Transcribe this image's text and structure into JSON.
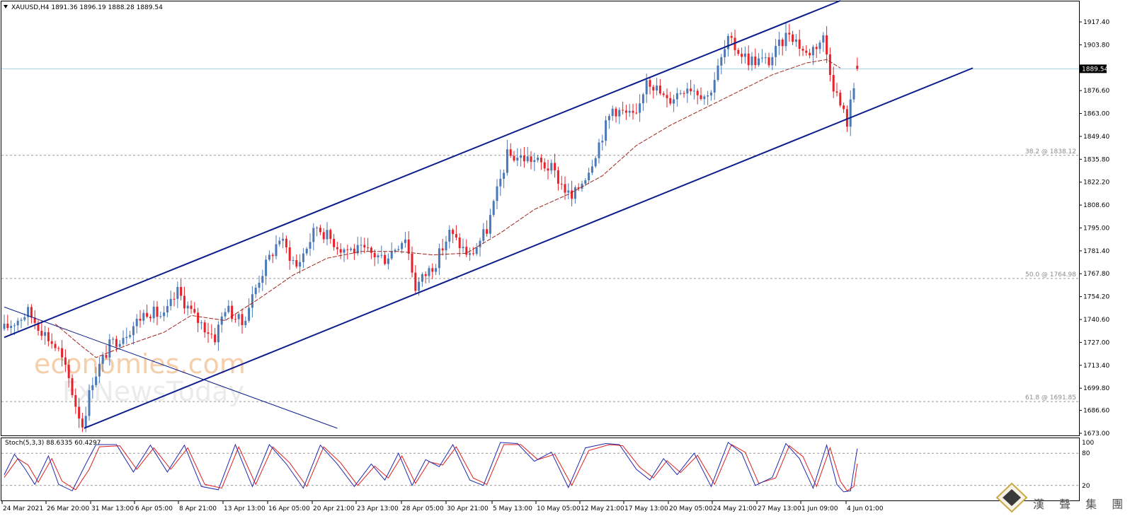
{
  "chart_data": {
    "type": "candlestick",
    "symbol": "XAUUSD",
    "timeframe": "H4",
    "header": "XAUUSD,H4  1891.36 1896.19 1888.28 1889.54",
    "ohlc_last": {
      "open": 1891.36,
      "high": 1896.19,
      "low": 1888.28,
      "close": 1889.54
    },
    "price_axis": {
      "ylim": [
        1673.0,
        1917.4
      ],
      "ticks": [
        "1917.40",
        "1903.80",
        "1889.54",
        "1876.60",
        "1863.00",
        "1849.40",
        "1835.80",
        "1822.20",
        "1808.60",
        "1795.00",
        "1781.40",
        "1767.80",
        "1754.20",
        "1740.60",
        "1727.00",
        "1713.40",
        "1699.80",
        "1686.60",
        "1673.00"
      ],
      "tick_values": [
        1917.4,
        1903.8,
        1889.54,
        1876.6,
        1863.0,
        1849.4,
        1835.8,
        1822.2,
        1808.6,
        1795.0,
        1781.4,
        1767.8,
        1754.2,
        1740.6,
        1727.0,
        1713.4,
        1699.8,
        1686.6,
        1673.0
      ],
      "current_price": "1889.54"
    },
    "time_axis": {
      "labels": [
        "24 Mar 2021",
        "26 Mar 20:00",
        "31 Mar 13:00",
        "6 Apr 05:00",
        "8 Apr 21:00",
        "13 Apr 13:00",
        "16 Apr 05:00",
        "20 Apr 21:00",
        "23 Apr 13:00",
        "28 Apr 05:00",
        "30 Apr 21:00",
        "5 May 13:00",
        "10 May 05:00",
        "12 May 21:00",
        "17 May 13:00",
        "20 May 05:00",
        "24 May 21:00",
        "27 May 13:00",
        "1 Jun 09:00",
        "4 Jun 01:00"
      ]
    },
    "fib_levels": [
      {
        "label": "38.2 @ 1838.12",
        "value": 1838.12
      },
      {
        "label": "50.0 @ 1764.98",
        "value": 1764.98
      },
      {
        "label": "61.8 @ 1691.85",
        "value": 1691.85
      }
    ],
    "channel": {
      "upper": [
        {
          "t": 0,
          "p": 1730
        },
        {
          "t": 246,
          "p": 1930
        }
      ],
      "lower": [
        {
          "t": 23.5,
          "p": 1676
        },
        {
          "t": 285,
          "p": 1890
        }
      ],
      "downtrend": [
        {
          "t": 0,
          "p": 1748
        },
        {
          "t": 98,
          "p": 1676
        }
      ]
    },
    "path_points": [
      {
        "t": 0,
        "p": 1735
      },
      {
        "t": 7,
        "p": 1745
      },
      {
        "t": 12,
        "p": 1732
      },
      {
        "t": 16,
        "p": 1722
      },
      {
        "t": 19,
        "p": 1705
      },
      {
        "t": 21,
        "p": 1690
      },
      {
        "t": 23,
        "p": 1678
      },
      {
        "t": 26,
        "p": 1705
      },
      {
        "t": 31,
        "p": 1725
      },
      {
        "t": 37,
        "p": 1735
      },
      {
        "t": 42,
        "p": 1746
      },
      {
        "t": 47,
        "p": 1742
      },
      {
        "t": 51,
        "p": 1757
      },
      {
        "t": 56,
        "p": 1742
      },
      {
        "t": 62,
        "p": 1730
      },
      {
        "t": 65,
        "p": 1748
      },
      {
        "t": 70,
        "p": 1738
      },
      {
        "t": 75,
        "p": 1765
      },
      {
        "t": 81,
        "p": 1789
      },
      {
        "t": 86,
        "p": 1772
      },
      {
        "t": 92,
        "p": 1796
      },
      {
        "t": 99,
        "p": 1783
      },
      {
        "t": 106,
        "p": 1781
      },
      {
        "t": 112,
        "p": 1777
      },
      {
        "t": 118,
        "p": 1790
      },
      {
        "t": 121,
        "p": 1760
      },
      {
        "t": 127,
        "p": 1775
      },
      {
        "t": 131,
        "p": 1792
      },
      {
        "t": 137,
        "p": 1778
      },
      {
        "t": 142,
        "p": 1794
      },
      {
        "t": 148,
        "p": 1838
      },
      {
        "t": 155,
        "p": 1836
      },
      {
        "t": 161,
        "p": 1830
      },
      {
        "t": 167,
        "p": 1812
      },
      {
        "t": 172,
        "p": 1830
      },
      {
        "t": 179,
        "p": 1866
      },
      {
        "t": 186,
        "p": 1860
      },
      {
        "t": 189,
        "p": 1885
      },
      {
        "t": 195,
        "p": 1870
      },
      {
        "t": 201,
        "p": 1880
      },
      {
        "t": 207,
        "p": 1873
      },
      {
        "t": 213,
        "p": 1906
      },
      {
        "t": 219,
        "p": 1895
      },
      {
        "t": 225,
        "p": 1894
      },
      {
        "t": 231,
        "p": 1912
      },
      {
        "t": 236,
        "p": 1898
      },
      {
        "t": 241,
        "p": 1908
      },
      {
        "t": 244,
        "p": 1880
      },
      {
        "t": 246,
        "p": 1868
      },
      {
        "t": 248,
        "p": 1858
      },
      {
        "t": 251,
        "p": 1889.54
      }
    ],
    "ma_points": [
      {
        "t": 15,
        "p": 1738
      },
      {
        "t": 22,
        "p": 1726
      },
      {
        "t": 27,
        "p": 1718
      },
      {
        "t": 37,
        "p": 1726
      },
      {
        "t": 47,
        "p": 1733
      },
      {
        "t": 55,
        "p": 1743
      },
      {
        "t": 65,
        "p": 1740
      },
      {
        "t": 75,
        "p": 1753
      },
      {
        "t": 85,
        "p": 1767
      },
      {
        "t": 95,
        "p": 1777
      },
      {
        "t": 105,
        "p": 1781
      },
      {
        "t": 116,
        "p": 1781
      },
      {
        "t": 126,
        "p": 1779
      },
      {
        "t": 136,
        "p": 1780
      },
      {
        "t": 146,
        "p": 1792
      },
      {
        "t": 156,
        "p": 1806
      },
      {
        "t": 166,
        "p": 1815
      },
      {
        "t": 176,
        "p": 1826
      },
      {
        "t": 186,
        "p": 1844
      },
      {
        "t": 196,
        "p": 1856
      },
      {
        "t": 206,
        "p": 1866
      },
      {
        "t": 216,
        "p": 1876
      },
      {
        "t": 226,
        "p": 1886
      },
      {
        "t": 236,
        "p": 1893
      },
      {
        "t": 242,
        "p": 1895
      },
      {
        "t": 246,
        "p": 1890
      }
    ],
    "stochastic": {
      "label": "Stoch(5,3,3) 88.6335 60.4297",
      "k": 88.6335,
      "d": 60.4297,
      "levels": [
        80,
        20
      ],
      "ticks": [
        "100",
        "80",
        "20"
      ],
      "k_path": [
        {
          "t": 0,
          "v": 40
        },
        {
          "t": 3,
          "v": 78
        },
        {
          "t": 6,
          "v": 52
        },
        {
          "t": 9,
          "v": 22
        },
        {
          "t": 13,
          "v": 75
        },
        {
          "t": 16,
          "v": 22
        },
        {
          "t": 20,
          "v": 10
        },
        {
          "t": 24,
          "v": 60
        },
        {
          "t": 27,
          "v": 96
        },
        {
          "t": 33,
          "v": 96
        },
        {
          "t": 38,
          "v": 45
        },
        {
          "t": 43,
          "v": 95
        },
        {
          "t": 48,
          "v": 45
        },
        {
          "t": 53,
          "v": 95
        },
        {
          "t": 58,
          "v": 18
        },
        {
          "t": 63,
          "v": 12
        },
        {
          "t": 68,
          "v": 96
        },
        {
          "t": 73,
          "v": 18
        },
        {
          "t": 78,
          "v": 96
        },
        {
          "t": 83,
          "v": 60
        },
        {
          "t": 88,
          "v": 15
        },
        {
          "t": 93,
          "v": 95
        },
        {
          "t": 98,
          "v": 60
        },
        {
          "t": 103,
          "v": 18
        },
        {
          "t": 108,
          "v": 60
        },
        {
          "t": 112,
          "v": 30
        },
        {
          "t": 116,
          "v": 80
        },
        {
          "t": 120,
          "v": 20
        },
        {
          "t": 124,
          "v": 68
        },
        {
          "t": 128,
          "v": 55
        },
        {
          "t": 132,
          "v": 96
        },
        {
          "t": 137,
          "v": 30
        },
        {
          "t": 141,
          "v": 20
        },
        {
          "t": 146,
          "v": 100
        },
        {
          "t": 151,
          "v": 98
        },
        {
          "t": 156,
          "v": 65
        },
        {
          "t": 161,
          "v": 82
        },
        {
          "t": 166,
          "v": 16
        },
        {
          "t": 171,
          "v": 90
        },
        {
          "t": 177,
          "v": 98
        },
        {
          "t": 181,
          "v": 96
        },
        {
          "t": 186,
          "v": 50
        },
        {
          "t": 190,
          "v": 30
        },
        {
          "t": 194,
          "v": 70
        },
        {
          "t": 198,
          "v": 40
        },
        {
          "t": 203,
          "v": 80
        },
        {
          "t": 208,
          "v": 18
        },
        {
          "t": 213,
          "v": 100
        },
        {
          "t": 217,
          "v": 80
        },
        {
          "t": 221,
          "v": 20
        },
        {
          "t": 226,
          "v": 35
        },
        {
          "t": 230,
          "v": 98
        },
        {
          "t": 234,
          "v": 70
        },
        {
          "t": 238,
          "v": 15
        },
        {
          "t": 242,
          "v": 95
        },
        {
          "t": 245,
          "v": 22
        },
        {
          "t": 247,
          "v": 8
        },
        {
          "t": 249,
          "v": 10
        },
        {
          "t": 251,
          "v": 88.6
        }
      ],
      "d_path": [
        {
          "t": 0,
          "v": 35
        },
        {
          "t": 4,
          "v": 70
        },
        {
          "t": 7,
          "v": 58
        },
        {
          "t": 10,
          "v": 26
        },
        {
          "t": 14,
          "v": 70
        },
        {
          "t": 17,
          "v": 28
        },
        {
          "t": 21,
          "v": 12
        },
        {
          "t": 25,
          "v": 50
        },
        {
          "t": 28,
          "v": 92
        },
        {
          "t": 34,
          "v": 94
        },
        {
          "t": 39,
          "v": 50
        },
        {
          "t": 44,
          "v": 90
        },
        {
          "t": 49,
          "v": 50
        },
        {
          "t": 54,
          "v": 90
        },
        {
          "t": 59,
          "v": 22
        },
        {
          "t": 64,
          "v": 15
        },
        {
          "t": 69,
          "v": 92
        },
        {
          "t": 74,
          "v": 22
        },
        {
          "t": 79,
          "v": 92
        },
        {
          "t": 84,
          "v": 62
        },
        {
          "t": 89,
          "v": 18
        },
        {
          "t": 94,
          "v": 92
        },
        {
          "t": 99,
          "v": 62
        },
        {
          "t": 104,
          "v": 20
        },
        {
          "t": 109,
          "v": 56
        },
        {
          "t": 113,
          "v": 34
        },
        {
          "t": 117,
          "v": 75
        },
        {
          "t": 121,
          "v": 24
        },
        {
          "t": 125,
          "v": 64
        },
        {
          "t": 129,
          "v": 58
        },
        {
          "t": 133,
          "v": 92
        },
        {
          "t": 138,
          "v": 34
        },
        {
          "t": 142,
          "v": 22
        },
        {
          "t": 147,
          "v": 96
        },
        {
          "t": 152,
          "v": 96
        },
        {
          "t": 157,
          "v": 68
        },
        {
          "t": 162,
          "v": 78
        },
        {
          "t": 167,
          "v": 20
        },
        {
          "t": 172,
          "v": 85
        },
        {
          "t": 178,
          "v": 96
        },
        {
          "t": 182,
          "v": 94
        },
        {
          "t": 187,
          "v": 54
        },
        {
          "t": 191,
          "v": 34
        },
        {
          "t": 195,
          "v": 66
        },
        {
          "t": 199,
          "v": 44
        },
        {
          "t": 204,
          "v": 76
        },
        {
          "t": 209,
          "v": 22
        },
        {
          "t": 214,
          "v": 96
        },
        {
          "t": 218,
          "v": 82
        },
        {
          "t": 222,
          "v": 24
        },
        {
          "t": 227,
          "v": 34
        },
        {
          "t": 231,
          "v": 94
        },
        {
          "t": 235,
          "v": 74
        },
        {
          "t": 239,
          "v": 18
        },
        {
          "t": 243,
          "v": 90
        },
        {
          "t": 246,
          "v": 28
        },
        {
          "t": 248,
          "v": 10
        },
        {
          "t": 250,
          "v": 18
        },
        {
          "t": 251,
          "v": 60.4
        }
      ]
    },
    "watermarks": {
      "line1": "economies.com",
      "line2": "FxNewsToday",
      "corner_text": "漢 聲 集 團"
    },
    "colors": {
      "bull": "#4a79b6",
      "bear": "#e8222a",
      "channel": "#0c1e8c",
      "ma": "#a0241c",
      "current_line": "#9fd4ef",
      "fib": "#999999",
      "stoch_k": "#1f28b0",
      "stoch_d": "#e01e1e",
      "watermark": "#f2c29a"
    }
  }
}
